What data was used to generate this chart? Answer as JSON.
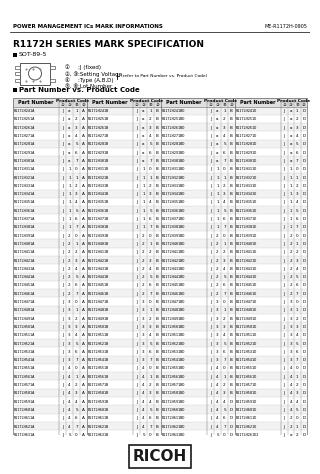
{
  "title_header": "POWER MANAGEMENT ICs MARK INFORMATIONS",
  "doc_number": "ME-R1172H-0905",
  "series_title": "R1172H SERIES MARK SPECIFICATION",
  "sot_label": "SOT-89-5",
  "table_title": "Part Number vs. Product Code",
  "columns": [
    {
      "rows": [
        [
          "R1172H241A",
          "J",
          "a",
          "1",
          "A"
        ],
        [
          "R1172H251A",
          "J",
          "a",
          "2",
          "A"
        ],
        [
          "R1172H261A",
          "J",
          "a",
          "3",
          "A"
        ],
        [
          "R1172H271A",
          "J",
          "a",
          "4",
          "A"
        ],
        [
          "R1172H281A",
          "J",
          "a",
          "5",
          "A"
        ],
        [
          "R1172H291A",
          "J",
          "a",
          "6",
          "A"
        ],
        [
          "R1172H301A",
          "J",
          "a",
          "7",
          "A"
        ],
        [
          "R1172H311A",
          "J",
          "1",
          "0",
          "A"
        ],
        [
          "R1172H321A",
          "J",
          "1",
          "1",
          "A"
        ],
        [
          "R1172H331A",
          "J",
          "1",
          "2",
          "A"
        ],
        [
          "R1172H341A",
          "J",
          "1",
          "3",
          "A"
        ],
        [
          "R1172H351A",
          "J",
          "1",
          "4",
          "A"
        ],
        [
          "R1172H361A",
          "J",
          "1",
          "5",
          "A"
        ],
        [
          "R1172H371A",
          "J",
          "1",
          "6",
          "A"
        ],
        [
          "R1172H381A",
          "J",
          "1",
          "7",
          "A"
        ],
        [
          "R1172H391A",
          "J",
          "2",
          "0",
          "A"
        ],
        [
          "R1172H401A",
          "J",
          "2",
          "1",
          "A"
        ],
        [
          "R1172H411A",
          "J",
          "2",
          "2",
          "A"
        ],
        [
          "R1172H421A",
          "J",
          "2",
          "3",
          "A"
        ],
        [
          "R1172H431A",
          "J",
          "2",
          "4",
          "A"
        ],
        [
          "R1172H441A",
          "J",
          "2",
          "5",
          "A"
        ],
        [
          "R1172H451A",
          "J",
          "2",
          "6",
          "A"
        ],
        [
          "R1172H461A",
          "J",
          "2",
          "7",
          "A"
        ],
        [
          "R1172H471A",
          "J",
          "3",
          "0",
          "A"
        ],
        [
          "R1172H481A",
          "J",
          "3",
          "1",
          "A"
        ],
        [
          "R1172H491A",
          "J",
          "3",
          "2",
          "A"
        ],
        [
          "R1172H501A",
          "J",
          "3",
          "3",
          "A"
        ],
        [
          "R1172H511A",
          "J",
          "3",
          "4",
          "A"
        ],
        [
          "R1172H521A",
          "J",
          "3",
          "5",
          "A"
        ],
        [
          "R1172H531A",
          "J",
          "3",
          "6",
          "A"
        ],
        [
          "R1172H541A",
          "J",
          "3",
          "7",
          "A"
        ],
        [
          "R1172H551A",
          "J",
          "4",
          "0",
          "A"
        ],
        [
          "R1172H561A",
          "J",
          "4",
          "1",
          "A"
        ],
        [
          "R1172H571A",
          "J",
          "4",
          "2",
          "A"
        ],
        [
          "R1172H581A",
          "J",
          "4",
          "3",
          "A"
        ],
        [
          "R1172H591A",
          "J",
          "4",
          "4",
          "A"
        ],
        [
          "R1172H601A",
          "J",
          "4",
          "5",
          "A"
        ],
        [
          "R1172H611A",
          "J",
          "4",
          "6",
          "A"
        ],
        [
          "R1172H621A",
          "J",
          "4",
          "7",
          "A"
        ],
        [
          "R1172H631A",
          "J",
          "5",
          "0",
          "A"
        ]
      ]
    },
    {
      "rows": [
        [
          "R1172H241B",
          "J",
          "a",
          "1",
          "B"
        ],
        [
          "R1172H251B",
          "J",
          "a",
          "2",
          "B"
        ],
        [
          "R1172H261B",
          "J",
          "a",
          "3",
          "B"
        ],
        [
          "R1172H271B",
          "J",
          "a",
          "4",
          "B"
        ],
        [
          "R1172H281B",
          "J",
          "a",
          "5",
          "B"
        ],
        [
          "R1172H291B",
          "J",
          "a",
          "6",
          "B"
        ],
        [
          "R1172H301B",
          "J",
          "a",
          "7",
          "B"
        ],
        [
          "R1172H311B",
          "J",
          "1",
          "0",
          "B"
        ],
        [
          "R1172H321B",
          "J",
          "1",
          "1",
          "B"
        ],
        [
          "R1172H331B",
          "J",
          "1",
          "2",
          "B"
        ],
        [
          "R1172H341B",
          "J",
          "1",
          "3",
          "B"
        ],
        [
          "R1172H351B",
          "J",
          "1",
          "4",
          "B"
        ],
        [
          "R1172H361B",
          "J",
          "1",
          "5",
          "B"
        ],
        [
          "R1172H371B",
          "J",
          "1",
          "6",
          "B"
        ],
        [
          "R1172H381B",
          "J",
          "1",
          "7",
          "B"
        ],
        [
          "R1172H391B",
          "J",
          "2",
          "0",
          "B"
        ],
        [
          "R1172H401B",
          "J",
          "2",
          "1",
          "B"
        ],
        [
          "R1172H411B",
          "J",
          "2",
          "2",
          "B"
        ],
        [
          "R1172H421B",
          "J",
          "2",
          "3",
          "B"
        ],
        [
          "R1172H431B",
          "J",
          "2",
          "4",
          "B"
        ],
        [
          "R1172H441B",
          "J",
          "2",
          "5",
          "B"
        ],
        [
          "R1172H451B",
          "J",
          "2",
          "6",
          "B"
        ],
        [
          "R1172H461B",
          "J",
          "2",
          "7",
          "B"
        ],
        [
          "R1172H471B",
          "J",
          "3",
          "0",
          "B"
        ],
        [
          "R1172H481B",
          "J",
          "3",
          "1",
          "B"
        ],
        [
          "R1172H491B",
          "J",
          "3",
          "2",
          "B"
        ],
        [
          "R1172H501B",
          "J",
          "3",
          "3",
          "B"
        ],
        [
          "R1172H511B",
          "J",
          "3",
          "4",
          "B"
        ],
        [
          "R1172H521B",
          "J",
          "3",
          "5",
          "B"
        ],
        [
          "R1172H531B",
          "J",
          "3",
          "6",
          "B"
        ],
        [
          "R1172H541B",
          "J",
          "3",
          "7",
          "B"
        ],
        [
          "R1172H551B",
          "J",
          "4",
          "0",
          "B"
        ],
        [
          "R1172H561B",
          "J",
          "4",
          "1",
          "B"
        ],
        [
          "R1172H571B",
          "J",
          "4",
          "2",
          "B"
        ],
        [
          "R1172H581B",
          "J",
          "4",
          "3",
          "B"
        ],
        [
          "R1172H591B",
          "J",
          "4",
          "4",
          "B"
        ],
        [
          "R1172H601B",
          "J",
          "4",
          "5",
          "B"
        ],
        [
          "R1172H611B",
          "J",
          "4",
          "6",
          "B"
        ],
        [
          "R1172H621B",
          "J",
          "4",
          "7",
          "B"
        ],
        [
          "R1172H631B",
          "J",
          "5",
          "0",
          "B"
        ]
      ]
    },
    {
      "rows": [
        [
          "R1172H241BD",
          "J",
          "a",
          "1",
          "B"
        ],
        [
          "R1172H251BD",
          "J",
          "a",
          "2",
          "B"
        ],
        [
          "R1172H261BD",
          "J",
          "a",
          "3",
          "B"
        ],
        [
          "R1172H271BD",
          "J",
          "a",
          "4",
          "B"
        ],
        [
          "R1172H281BD",
          "J",
          "a",
          "5",
          "B"
        ],
        [
          "R1172H291BD",
          "J",
          "a",
          "6",
          "B"
        ],
        [
          "R1172H301BD",
          "J",
          "a",
          "7",
          "B"
        ],
        [
          "R1172H311BD",
          "J",
          "1",
          "0",
          "B"
        ],
        [
          "R1172H321BD",
          "J",
          "1",
          "1",
          "B"
        ],
        [
          "R1172H331BD",
          "J",
          "1",
          "2",
          "B"
        ],
        [
          "R1172H341BD",
          "J",
          "1",
          "3",
          "B"
        ],
        [
          "R1172H351BD",
          "J",
          "1",
          "4",
          "B"
        ],
        [
          "R1172H361BD",
          "J",
          "1",
          "5",
          "B"
        ],
        [
          "R1172H371BD",
          "J",
          "1",
          "6",
          "B"
        ],
        [
          "R1172H381BD",
          "J",
          "1",
          "7",
          "B"
        ],
        [
          "R1172H391BD",
          "J",
          "2",
          "0",
          "B"
        ],
        [
          "R1172H401BD",
          "J",
          "2",
          "1",
          "B"
        ],
        [
          "R1172H411BD",
          "J",
          "2",
          "2",
          "B"
        ],
        [
          "R1172H421BD",
          "J",
          "2",
          "3",
          "B"
        ],
        [
          "R1172H431BD",
          "J",
          "2",
          "4",
          "B"
        ],
        [
          "R1172H441BD",
          "J",
          "2",
          "5",
          "B"
        ],
        [
          "R1172H451BD",
          "J",
          "2",
          "6",
          "B"
        ],
        [
          "R1172H461BD",
          "J",
          "2",
          "7",
          "B"
        ],
        [
          "R1172H471BD",
          "J",
          "3",
          "0",
          "B"
        ],
        [
          "R1172H481BD",
          "J",
          "3",
          "1",
          "B"
        ],
        [
          "R1172H491BD",
          "J",
          "3",
          "2",
          "B"
        ],
        [
          "R1172H501BD",
          "J",
          "3",
          "3",
          "B"
        ],
        [
          "R1172H511BD",
          "J",
          "3",
          "4",
          "B"
        ],
        [
          "R1172H521BD",
          "J",
          "3",
          "5",
          "B"
        ],
        [
          "R1172H531BD",
          "J",
          "3",
          "6",
          "B"
        ],
        [
          "R1172H541BD",
          "J",
          "3",
          "7",
          "B"
        ],
        [
          "R1172H551BD",
          "J",
          "4",
          "0",
          "B"
        ],
        [
          "R1172H561BD",
          "J",
          "4",
          "1",
          "B"
        ],
        [
          "R1172H571BD",
          "J",
          "4",
          "2",
          "B"
        ],
        [
          "R1172H581BD",
          "J",
          "4",
          "3",
          "B"
        ],
        [
          "R1172H591BD",
          "J",
          "4",
          "4",
          "D"
        ],
        [
          "R1172H601BD",
          "J",
          "4",
          "5",
          "D"
        ],
        [
          "R1172H611BD",
          "J",
          "4",
          "6",
          "D"
        ],
        [
          "R1172H621BD",
          "J",
          "4",
          "7",
          "D"
        ],
        [
          "R1172H631BD",
          "J",
          "5",
          "0",
          "D"
        ]
      ]
    },
    {
      "rows": [
        [
          "R1172H241D",
          "J",
          "a",
          "1",
          "D"
        ],
        [
          "R1172H251D",
          "J",
          "a",
          "2",
          "D"
        ],
        [
          "R1172H261D",
          "J",
          "a",
          "3",
          "D"
        ],
        [
          "R1172H271D",
          "J",
          "a",
          "4",
          "D"
        ],
        [
          "R1172H281D",
          "J",
          "a",
          "5",
          "D"
        ],
        [
          "R1172H291D",
          "J",
          "a",
          "6",
          "D"
        ],
        [
          "R1172H301D",
          "J",
          "a",
          "7",
          "D"
        ],
        [
          "R1172H311D",
          "J",
          "1",
          "0",
          "D"
        ],
        [
          "R1172H321D",
          "J",
          "1",
          "1",
          "D"
        ],
        [
          "R1172H331D",
          "J",
          "1",
          "2",
          "D"
        ],
        [
          "R1172H341D",
          "J",
          "1",
          "3",
          "D"
        ],
        [
          "R1172H351D",
          "J",
          "1",
          "4",
          "D"
        ],
        [
          "R1172H361D",
          "J",
          "1",
          "5",
          "D"
        ],
        [
          "R1172H371D",
          "J",
          "1",
          "6",
          "D"
        ],
        [
          "R1172H381D",
          "J",
          "1",
          "7",
          "D"
        ],
        [
          "R1172H391D",
          "J",
          "2",
          "0",
          "D"
        ],
        [
          "R1172H401D",
          "J",
          "2",
          "1",
          "D"
        ],
        [
          "R1172H411D",
          "J",
          "2",
          "2",
          "D"
        ],
        [
          "R1172H421D",
          "J",
          "2",
          "3",
          "D"
        ],
        [
          "R1172H431D",
          "J",
          "2",
          "4",
          "D"
        ],
        [
          "R1172H441D",
          "J",
          "2",
          "5",
          "D"
        ],
        [
          "R1172H451D",
          "J",
          "2",
          "6",
          "D"
        ],
        [
          "R1172H461D",
          "J",
          "2",
          "7",
          "D"
        ],
        [
          "R1172H471D",
          "J",
          "3",
          "0",
          "D"
        ],
        [
          "R1172H481D",
          "J",
          "3",
          "1",
          "D"
        ],
        [
          "R1172H491D",
          "J",
          "3",
          "2",
          "D"
        ],
        [
          "R1172H501D",
          "J",
          "3",
          "3",
          "D"
        ],
        [
          "R1172H511D",
          "J",
          "3",
          "4",
          "D"
        ],
        [
          "R1172H521D",
          "J",
          "3",
          "5",
          "D"
        ],
        [
          "R1172H531D",
          "J",
          "3",
          "6",
          "D"
        ],
        [
          "R1172H541D",
          "J",
          "3",
          "7",
          "D"
        ],
        [
          "R1172H551D",
          "J",
          "4",
          "0",
          "D"
        ],
        [
          "R1172H561D",
          "J",
          "4",
          "1",
          "D"
        ],
        [
          "R1172H571D",
          "J",
          "4",
          "2",
          "D"
        ],
        [
          "R1172H581D",
          "J",
          "4",
          "3",
          "D"
        ],
        [
          "R1172H591D",
          "J",
          "4",
          "4",
          "D"
        ],
        [
          "R1172H601D",
          "J",
          "4",
          "5",
          "D"
        ],
        [
          "R1172H611D",
          "J",
          "2",
          "0",
          "D"
        ],
        [
          "R1172H621D",
          "J",
          "2",
          "1",
          "D"
        ],
        [
          "R1172H261D2",
          "J",
          "a",
          "2",
          "D"
        ]
      ]
    }
  ],
  "sub_labels": [
    "②",
    "③",
    "④",
    "⑤"
  ],
  "bg_color": "#ffffff"
}
